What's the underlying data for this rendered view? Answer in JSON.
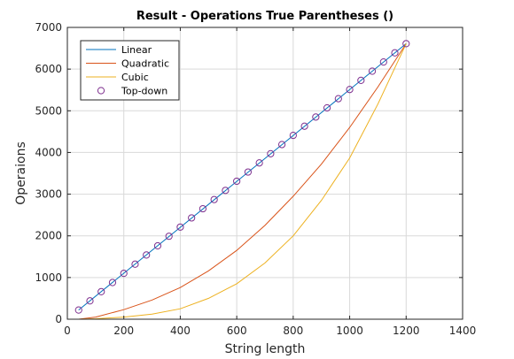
{
  "chart_data": {
    "type": "line",
    "title": "Result - Operations True Parentheses ()",
    "xlabel": "String length",
    "ylabel": "Operaions",
    "xlim": [
      0,
      1400
    ],
    "ylim": [
      0,
      7000
    ],
    "xticks": [
      0,
      200,
      400,
      600,
      800,
      1000,
      1200,
      1400
    ],
    "yticks": [
      0,
      1000,
      2000,
      3000,
      4000,
      5000,
      6000,
      7000
    ],
    "grid": true,
    "legend_position": "top-left",
    "series": [
      {
        "name": "Linear",
        "style": "line",
        "color": "#0072BD",
        "x": [
          40,
          1200
        ],
        "y": [
          220,
          6610
        ]
      },
      {
        "name": "Quadratic",
        "style": "line",
        "color": "#D95319",
        "x": [
          40,
          100,
          200,
          300,
          400,
          500,
          600,
          700,
          800,
          900,
          1000,
          1100,
          1200
        ],
        "y": [
          0,
          50,
          230,
          460,
          760,
          1160,
          1650,
          2250,
          2950,
          3720,
          4600,
          5570,
          6610
        ]
      },
      {
        "name": "Cubic",
        "style": "line",
        "color": "#EDB120",
        "x": [
          40,
          100,
          200,
          300,
          400,
          500,
          600,
          700,
          800,
          900,
          1000,
          1100,
          1200
        ],
        "y": [
          0,
          10,
          50,
          120,
          250,
          500,
          850,
          1350,
          2000,
          2850,
          3870,
          5160,
          6610
        ]
      },
      {
        "name": "Top-down",
        "style": "markers",
        "color": "#7E2F8E",
        "x": [
          40,
          80,
          120,
          160,
          200,
          240,
          280,
          320,
          360,
          400,
          440,
          480,
          520,
          560,
          600,
          640,
          680,
          720,
          760,
          800,
          840,
          880,
          920,
          960,
          1000,
          1040,
          1080,
          1120,
          1160,
          1200
        ],
        "y": [
          220,
          440,
          660,
          880,
          1100,
          1320,
          1540,
          1760,
          1990,
          2210,
          2430,
          2650,
          2870,
          3090,
          3310,
          3530,
          3750,
          3970,
          4190,
          4410,
          4630,
          4850,
          5070,
          5290,
          5510,
          5730,
          5950,
          6170,
          6390,
          6610
        ]
      }
    ]
  }
}
